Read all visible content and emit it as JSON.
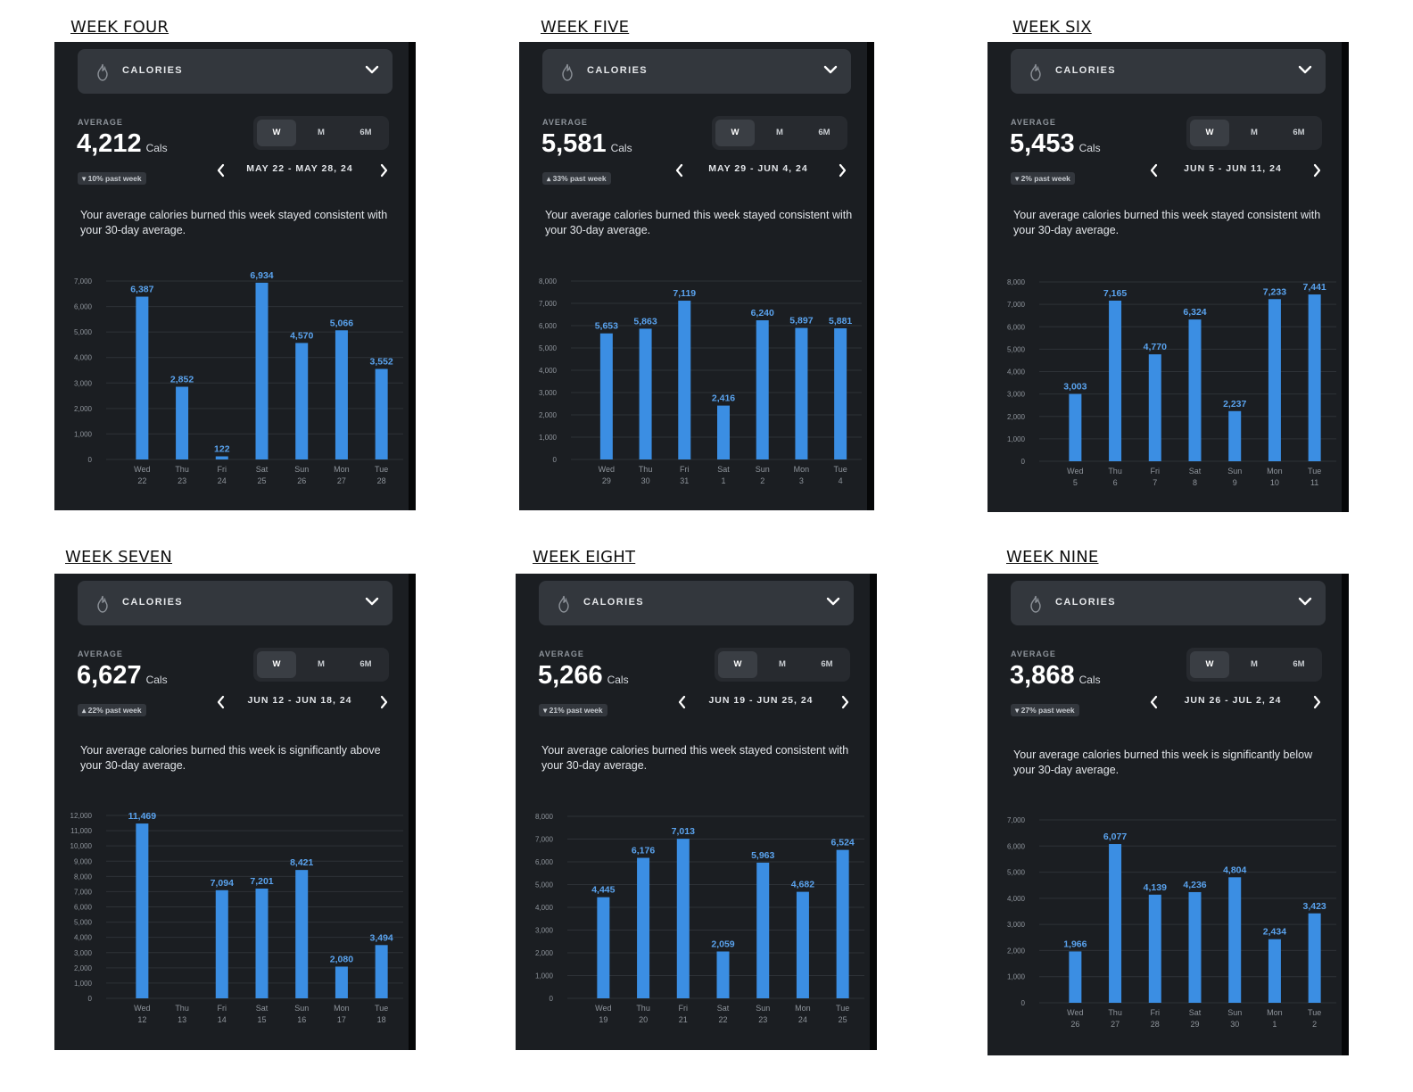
{
  "colors": {
    "panel_bg": "#1b1e22",
    "bar": "#3b8ee3",
    "bar_label": "#5aa3ee",
    "grid": "#2e3237",
    "axis_text": "#8e949b"
  },
  "icons": {
    "metric": "flame-icon",
    "dropdown": "chevron-down-icon",
    "prev": "chevron-left-icon",
    "next": "chevron-right-icon"
  },
  "panels": [
    {
      "title": "WEEK FOUR",
      "metric_label": "CALORIES",
      "average_label": "AVERAGE",
      "average_value": "4,212",
      "average_unit": "Cals",
      "trend_text": "▾ 10% past week",
      "tabs": [
        "W",
        "M",
        "6M"
      ],
      "active_tab": "W",
      "date_range": "MAY 22 - MAY 28, 24",
      "summary": "Your average calories burned this week stayed consistent with your 30-day average.",
      "chart_data": {
        "type": "bar",
        "days": [
          "Wed",
          "Thu",
          "Fri",
          "Sat",
          "Sun",
          "Mon",
          "Tue"
        ],
        "dates": [
          "22",
          "23",
          "24",
          "25",
          "26",
          "27",
          "28"
        ],
        "values": [
          6387,
          2852,
          122,
          6934,
          4570,
          5066,
          3552
        ],
        "value_labels": [
          "6,387",
          "2,852",
          "122",
          "6,934",
          "4,570",
          "5,066",
          "3,552"
        ],
        "yticks": [
          "0",
          "1,000",
          "2,000",
          "3,000",
          "4,000",
          "5,000",
          "6,000",
          "7,000"
        ],
        "ylim": [
          0,
          7000
        ]
      }
    },
    {
      "title": "WEEK FIVE",
      "metric_label": "CALORIES",
      "average_label": "AVERAGE",
      "average_value": "5,581",
      "average_unit": "Cals",
      "trend_text": "▴ 33% past week",
      "tabs": [
        "W",
        "M",
        "6M"
      ],
      "active_tab": "W",
      "date_range": "MAY 29 - JUN 4, 24",
      "summary": "Your average calories burned this week stayed consistent with your 30-day average.",
      "chart_data": {
        "type": "bar",
        "days": [
          "Wed",
          "Thu",
          "Fri",
          "Sat",
          "Sun",
          "Mon",
          "Tue"
        ],
        "dates": [
          "29",
          "30",
          "31",
          "1",
          "2",
          "3",
          "4"
        ],
        "values": [
          5653,
          5863,
          7119,
          2416,
          6240,
          5897,
          5881
        ],
        "value_labels": [
          "5,653",
          "5,863",
          "7,119",
          "2,416",
          "6,240",
          "5,897",
          "5,881"
        ],
        "yticks": [
          "0",
          "1,000",
          "2,000",
          "3,000",
          "4,000",
          "5,000",
          "6,000",
          "7,000",
          "8,000"
        ],
        "ylim": [
          0,
          8000
        ]
      }
    },
    {
      "title": "WEEK SIX",
      "metric_label": "CALORIES",
      "average_label": "AVERAGE",
      "average_value": "5,453",
      "average_unit": "Cals",
      "trend_text": "▾ 2% past week",
      "tabs": [
        "W",
        "M",
        "6M"
      ],
      "active_tab": "W",
      "date_range": "JUN 5 - JUN 11, 24",
      "summary": "Your average calories burned this week stayed consistent with your 30-day average.",
      "chart_data": {
        "type": "bar",
        "days": [
          "Wed",
          "Thu",
          "Fri",
          "Sat",
          "Sun",
          "Mon",
          "Tue"
        ],
        "dates": [
          "5",
          "6",
          "7",
          "8",
          "9",
          "10",
          "11"
        ],
        "values": [
          3003,
          7165,
          4770,
          6324,
          2237,
          7233,
          7441
        ],
        "value_labels": [
          "3,003",
          "7,165",
          "4,770",
          "6,324",
          "2,237",
          "7,233",
          "7,441"
        ],
        "yticks": [
          "0",
          "1,000",
          "2,000",
          "3,000",
          "4,000",
          "5,000",
          "6,000",
          "7,000",
          "8,000"
        ],
        "ylim": [
          0,
          8000
        ]
      }
    },
    {
      "title": "WEEK SEVEN",
      "metric_label": "CALORIES",
      "average_label": "AVERAGE",
      "average_value": "6,627",
      "average_unit": "Cals",
      "trend_text": "▴ 22% past week",
      "tabs": [
        "W",
        "M",
        "6M"
      ],
      "active_tab": "W",
      "date_range": "JUN 12 - JUN 18, 24",
      "summary": "Your average calories burned this week is significantly above your 30-day average.",
      "chart_data": {
        "type": "bar",
        "days": [
          "Wed",
          "Thu",
          "Fri",
          "Sat",
          "Sun",
          "Mon",
          "Tue"
        ],
        "dates": [
          "12",
          "13",
          "14",
          "15",
          "16",
          "17",
          "18"
        ],
        "values": [
          11469,
          0,
          7094,
          7201,
          8421,
          2080,
          3494
        ],
        "value_labels": [
          "11,469",
          "",
          "7,094",
          "7,201",
          "8,421",
          "2,080",
          "3,494"
        ],
        "yticks": [
          "0",
          "1,000",
          "2,000",
          "3,000",
          "4,000",
          "5,000",
          "6,000",
          "7,000",
          "8,000",
          "9,000",
          "10,000",
          "11,000",
          "12,000"
        ],
        "ylim": [
          0,
          12000
        ]
      }
    },
    {
      "title": "WEEK EIGHT",
      "metric_label": "CALORIES",
      "average_label": "AVERAGE",
      "average_value": "5,266",
      "average_unit": "Cals",
      "trend_text": "▾ 21% past week",
      "tabs": [
        "W",
        "M",
        "6M"
      ],
      "active_tab": "W",
      "date_range": "JUN 19 - JUN 25, 24",
      "summary": "Your average calories burned this week stayed consistent with your 30-day average.",
      "chart_data": {
        "type": "bar",
        "days": [
          "Wed",
          "Thu",
          "Fri",
          "Sat",
          "Sun",
          "Mon",
          "Tue"
        ],
        "dates": [
          "19",
          "20",
          "21",
          "22",
          "23",
          "24",
          "25"
        ],
        "values": [
          4445,
          6176,
          7013,
          2059,
          5963,
          4682,
          6524
        ],
        "value_labels": [
          "4,445",
          "6,176",
          "7,013",
          "2,059",
          "5,963",
          "4,682",
          "6,524"
        ],
        "yticks": [
          "0",
          "1,000",
          "2,000",
          "3,000",
          "4,000",
          "5,000",
          "6,000",
          "7,000",
          "8,000"
        ],
        "ylim": [
          0,
          8000
        ]
      }
    },
    {
      "title": "WEEK NINE",
      "metric_label": "CALORIES",
      "average_label": "AVERAGE",
      "average_value": "3,868",
      "average_unit": "Cals",
      "trend_text": "▾ 27% past week",
      "tabs": [
        "W",
        "M",
        "6M"
      ],
      "active_tab": "W",
      "date_range": "JUN 26 - JUL 2, 24",
      "summary": "Your average calories burned this week is significantly below your 30-day average.",
      "chart_data": {
        "type": "bar",
        "days": [
          "Wed",
          "Thu",
          "Fri",
          "Sat",
          "Sun",
          "Mon",
          "Tue"
        ],
        "dates": [
          "26",
          "27",
          "28",
          "29",
          "30",
          "1",
          "2"
        ],
        "values": [
          1966,
          6077,
          4139,
          4236,
          4804,
          2434,
          3423
        ],
        "value_labels": [
          "1,966",
          "6,077",
          "4,139",
          "4,236",
          "4,804",
          "2,434",
          "3,423"
        ],
        "yticks": [
          "0",
          "1,000",
          "2,000",
          "3,000",
          "4,000",
          "5,000",
          "6,000",
          "7,000"
        ],
        "ylim": [
          0,
          7000
        ]
      }
    }
  ]
}
